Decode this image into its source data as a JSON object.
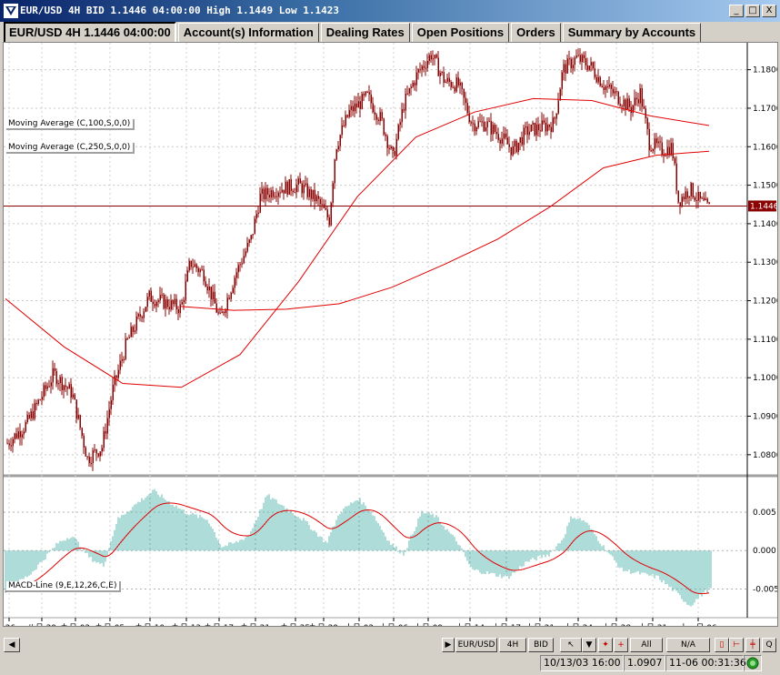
{
  "window": {
    "title": "EUR/USD 4H BID 1.1446 04:00:00 High 1.1449 Low 1.1423",
    "buttons": [
      "_",
      "□",
      "X"
    ]
  },
  "tabs": [
    {
      "label": "EUR/USD 4H 1.1446 04:00:00",
      "active": true
    },
    {
      "label": "Account(s) Information"
    },
    {
      "label": "Dealing Rates"
    },
    {
      "label": "Open Positions"
    },
    {
      "label": "Orders"
    },
    {
      "label": "Summary by Accounts"
    }
  ],
  "indicators": {
    "ma100": "Moving Average (C,100,S,0,0)",
    "ma250": "Moving Average (C,250,S,0,0)",
    "macd": "MACD-Line (9,E,12,26,C,E)"
  },
  "price_axis": {
    "labels": [
      "1.1800",
      "1.1700",
      "1.1600",
      "1.1500",
      "1.1400",
      "1.1300",
      "1.1200",
      "1.1100",
      "1.1000",
      "1.0900",
      "1.0800"
    ],
    "current_price": "1.1446"
  },
  "macd_axis": {
    "labels": [
      "0.005",
      "0.000",
      "-0.005"
    ]
  },
  "time_axis": {
    "labels": [
      ".26",
      "八月.29",
      "九月.02",
      "九月.05",
      "九月.10",
      "九月.13",
      "九月.17",
      "九月.21",
      "九月.25",
      "九月.29",
      "十月.02",
      "十月.06",
      "十月.09",
      "十月.14",
      "十月.17",
      "十月.21",
      "十月.24",
      "十月.28",
      "十月.31",
      "十一月.06"
    ]
  },
  "toolbar": {
    "symbol": "EUR/USD",
    "timeframe": "4H",
    "side": "BID",
    "all": "All",
    "na": "N/A",
    "q": "Q"
  },
  "status": {
    "datetime": "10/13/03 16:00",
    "price": "1.0907",
    "clock": "11-06  00:31:36"
  },
  "colors": {
    "candle": "#8b0000",
    "ma": "#e00000",
    "macd_hist": "#5cb8b2",
    "signal": "#e00000",
    "price_marker": "#8b0000"
  },
  "chart_data": {
    "type": "line",
    "title": "EUR/USD 4H",
    "ylim_price": [
      1.075,
      1.187
    ],
    "series": [
      {
        "name": "Moving Average (C,100,S,0,0)",
        "values": [
          1.1205,
          1.108,
          1.0985,
          1.0975,
          1.106,
          1.125,
          1.147,
          1.1625,
          1.169,
          1.1725,
          1.172,
          1.168,
          1.1655
        ]
      },
      {
        "name": "Moving Average (C,250,S,0,0)",
        "values": [
          1.1185,
          1.1175,
          1.1178,
          1.1192,
          1.1235,
          1.1295,
          1.136,
          1.1445,
          1.1545,
          1.1578,
          1.1588
        ]
      }
    ],
    "ylim_macd": [
      -0.0085,
      0.0095
    ]
  }
}
